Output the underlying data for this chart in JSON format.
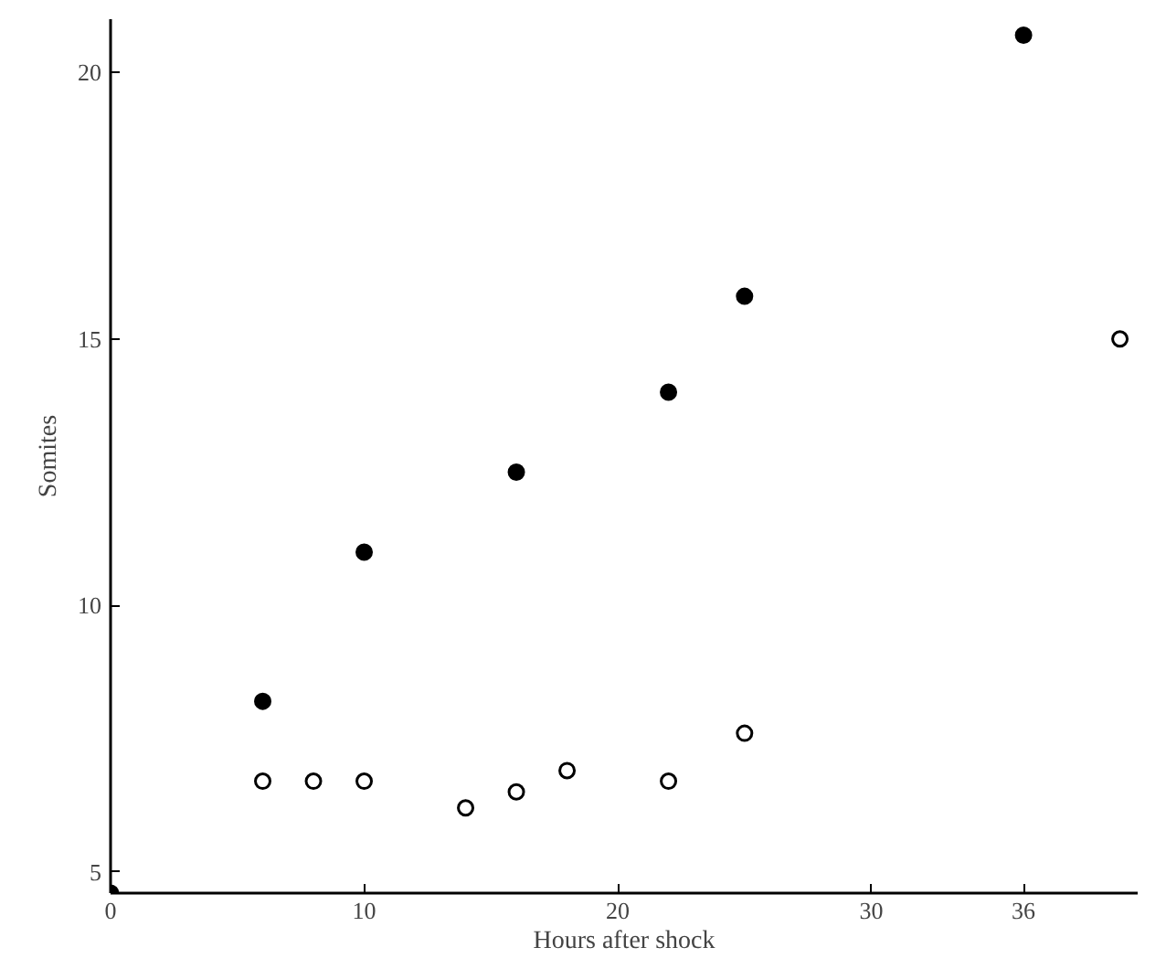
{
  "chart_data": {
    "type": "scatter",
    "xlabel": "Hours after shock",
    "ylabel": "Somites",
    "grid": false,
    "xlim": [
      0,
      40.5
    ],
    "ylim": [
      4.6,
      21
    ],
    "xticks": [
      0,
      10,
      20,
      30,
      36
    ],
    "yticks": [
      5,
      10,
      15,
      20
    ],
    "series": [
      {
        "color": "#000000",
        "marker": "circle",
        "x": [
          0,
          6,
          10,
          16,
          22,
          25,
          36
        ],
        "values": [
          4.6,
          8.2,
          11.0,
          12.5,
          14.0,
          15.8,
          20.7
        ]
      },
      {
        "color": "#000000",
        "marker": "circle_open",
        "x": [
          6,
          8,
          10,
          14,
          16,
          18,
          22,
          25,
          39.8
        ],
        "values": [
          6.7,
          6.7,
          6.7,
          6.2,
          6.5,
          6.9,
          6.7,
          7.6,
          15.0
        ]
      }
    ]
  }
}
